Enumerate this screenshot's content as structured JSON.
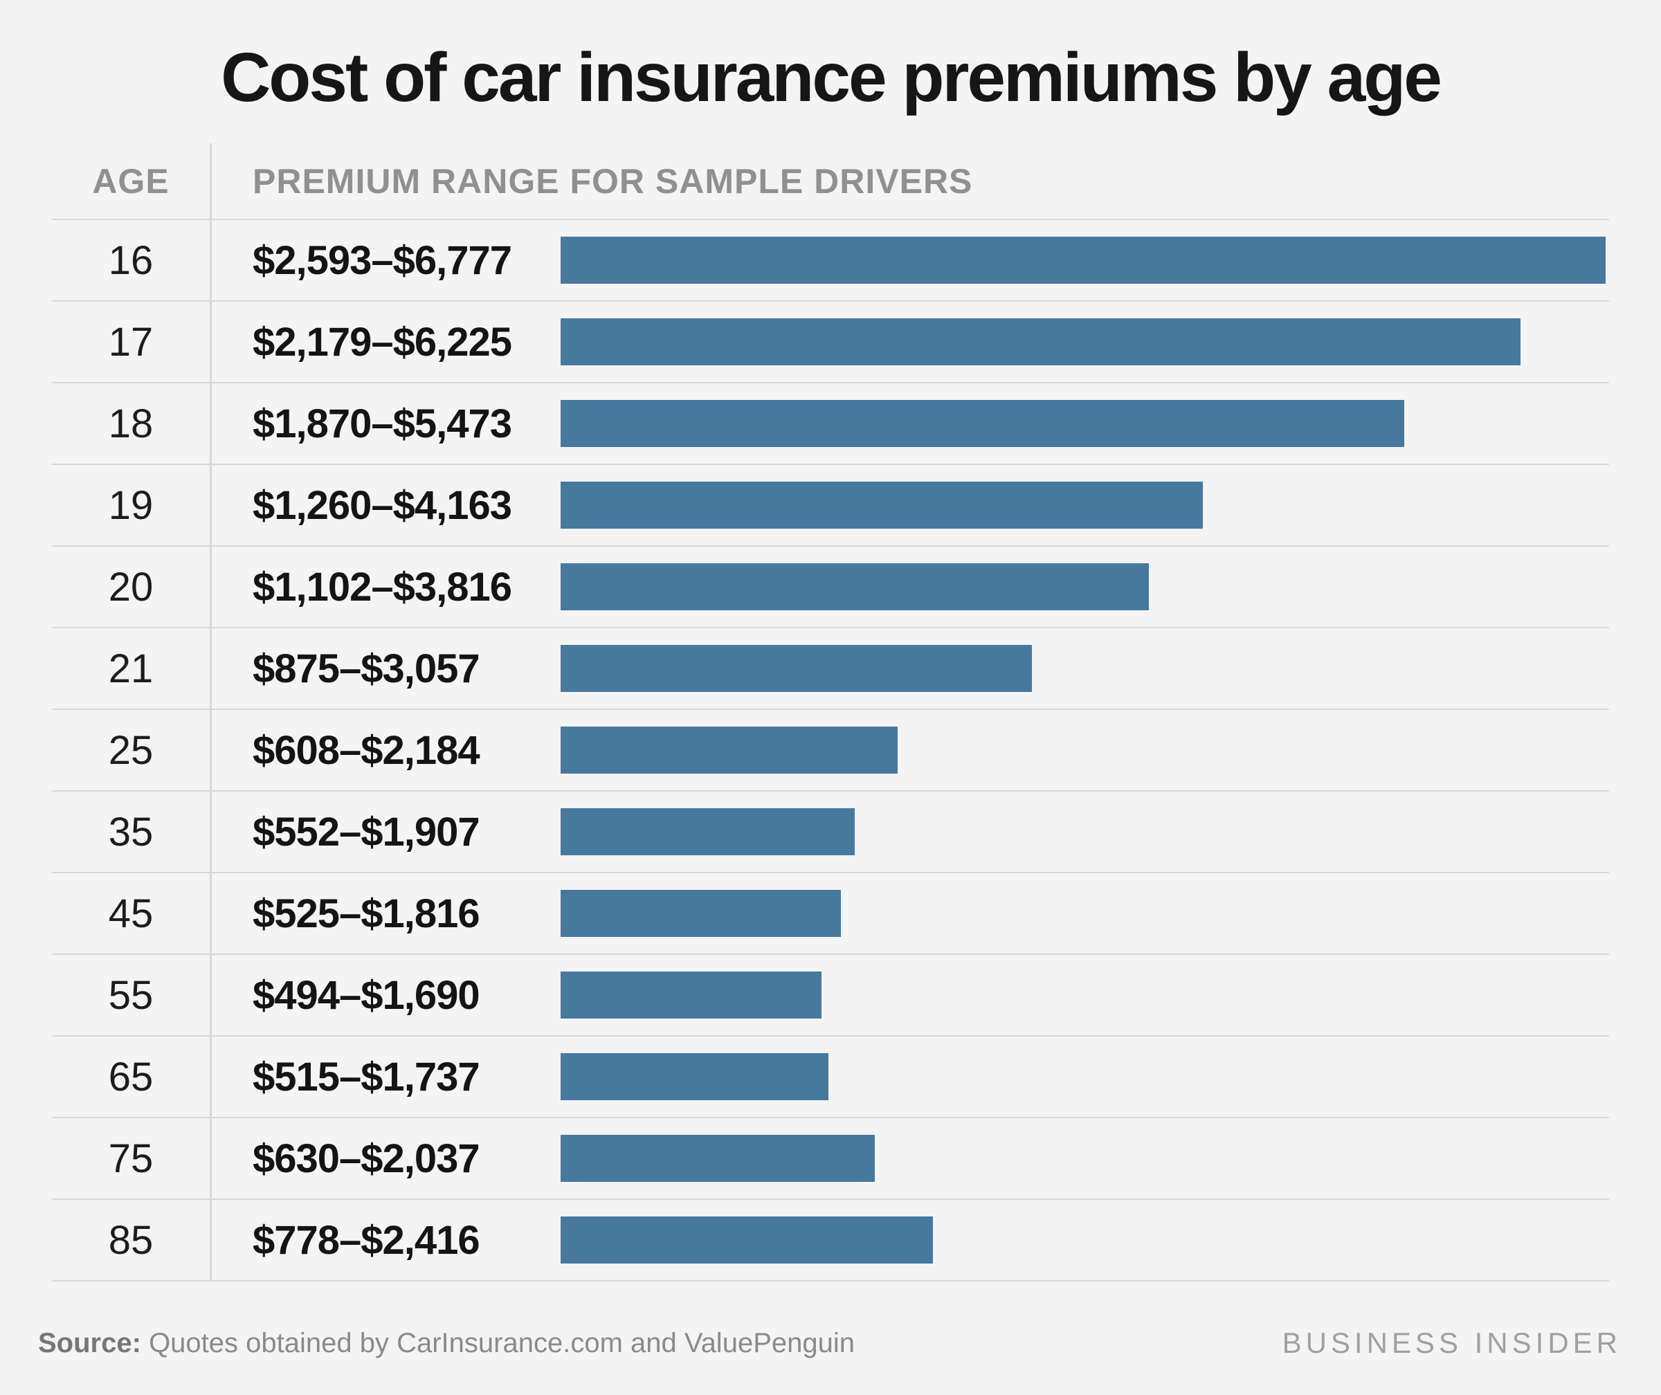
{
  "title": "Cost of car insurance premiums by age",
  "colors": {
    "background": "#f4f4f4",
    "bar": "#47799F",
    "separator": "#d8d8d8",
    "header_text": "#909090",
    "body_text": "#141414",
    "footer_text": "#8a8a8a"
  },
  "table": {
    "headers": {
      "age": "AGE",
      "premium": "PREMIUM RANGE FOR SAMPLE DRIVERS"
    },
    "rows": [
      {
        "age": "16",
        "range": "$2,593–$6,777"
      },
      {
        "age": "17",
        "range": "$2,179–$6,225"
      },
      {
        "age": "18",
        "range": "$1,870–$5,473"
      },
      {
        "age": "19",
        "range": "$1,260–$4,163"
      },
      {
        "age": "20",
        "range": "$1,102–$3,816"
      },
      {
        "age": "21",
        "range": "$875–$3,057"
      },
      {
        "age": "25",
        "range": "$608–$2,184"
      },
      {
        "age": "35",
        "range": "$552–$1,907"
      },
      {
        "age": "45",
        "range": "$525–$1,816"
      },
      {
        "age": "55",
        "range": "$494–$1,690"
      },
      {
        "age": "65",
        "range": "$515–$1,737"
      },
      {
        "age": "75",
        "range": "$630–$2,037"
      },
      {
        "age": "85",
        "range": "$778–$2,416"
      }
    ]
  },
  "footer": {
    "source_label": "Source:",
    "source_text": "Quotes obtained by CarInsurance.com and ValuePenguin",
    "brand": "BUSINESS INSIDER"
  },
  "chart_data": {
    "type": "bar",
    "orientation": "horizontal",
    "title": "Cost of car insurance premiums by age",
    "categories": [
      "16",
      "17",
      "18",
      "19",
      "20",
      "21",
      "25",
      "35",
      "45",
      "55",
      "65",
      "75",
      "85"
    ],
    "series": [
      {
        "name": "Premium range low ($)",
        "values": [
          2593,
          2179,
          1870,
          1260,
          1102,
          875,
          608,
          552,
          525,
          494,
          515,
          630,
          778
        ]
      },
      {
        "name": "Premium range high ($)",
        "values": [
          6777,
          6225,
          5473,
          4163,
          3816,
          3057,
          2184,
          1907,
          1816,
          1690,
          1737,
          2037,
          2416
        ]
      }
    ],
    "value_labels": [
      "$2,593–$6,777",
      "$2,179–$6,225",
      "$1,870–$5,473",
      "$1,260–$4,163",
      "$1,102–$3,816",
      "$875–$3,057",
      "$608–$2,184",
      "$552–$1,907",
      "$525–$1,816",
      "$494–$1,690",
      "$515–$1,737",
      "$630–$2,037",
      "$778–$2,416"
    ],
    "bar_scale_max": 6777,
    "xlim": [
      0,
      6777
    ],
    "xlabel": "",
    "ylabel": "AGE",
    "grid": false,
    "legend": false,
    "bar_color": "#47799F",
    "notes": "Bar length is proportional to the high end of each premium range",
    "source": "Quotes obtained by CarInsurance.com and ValuePenguin"
  }
}
